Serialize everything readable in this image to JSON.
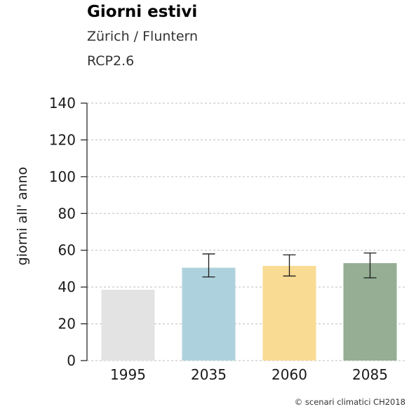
{
  "chart_data": {
    "type": "bar",
    "title": "Giorni estivi",
    "subtitle": "Zürich / Fluntern",
    "scenario": "RCP2.6",
    "ylabel": "giorni all' anno",
    "xlabel": "",
    "ylim": [
      0,
      140
    ],
    "yticks": [
      0,
      20,
      40,
      60,
      80,
      100,
      120,
      140
    ],
    "grid": true,
    "categories": [
      "1995",
      "2035",
      "2060",
      "2085"
    ],
    "values": [
      38.5,
      50.5,
      51.5,
      53
    ],
    "error_low": [
      null,
      45.5,
      46,
      45
    ],
    "error_high": [
      null,
      58,
      57.5,
      58.5
    ],
    "colors": [
      "#e3e3e3",
      "#aed2dd",
      "#fadb94",
      "#95ae94"
    ],
    "credit": "© scenari climatici CH2018"
  }
}
